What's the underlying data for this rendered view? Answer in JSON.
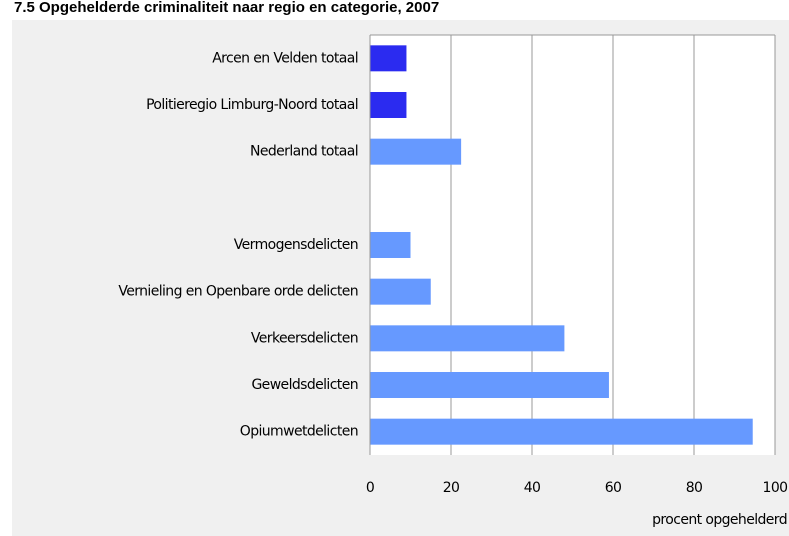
{
  "chart_data": {
    "type": "barh",
    "title": "7.5 Opgehelderde criminaliteit naar regio en categorie, 2007",
    "categories": [
      "Arcen en Velden totaal",
      "Politieregio Limburg-Noord totaal",
      "Nederland totaal",
      null,
      "Vermogensdelicten",
      "Vernieling en Openbare orde delicten",
      "Verkeersdelicten",
      "Geweldsdelicten",
      "Opiumwetdelicten"
    ],
    "values": [
      9,
      9,
      22.5,
      null,
      10,
      15,
      48,
      59,
      94.5
    ],
    "colors": [
      "#2b2bf0",
      "#2b2bf0",
      "#6699ff",
      "#6699ff",
      "#6699ff",
      "#6699ff",
      "#6699ff",
      "#6699ff",
      "#6699ff"
    ],
    "xlim": [
      0,
      100
    ],
    "xticks": [
      0,
      20,
      40,
      60,
      80,
      100
    ],
    "xlabel": "procent opgehelderd",
    "grid": true
  }
}
